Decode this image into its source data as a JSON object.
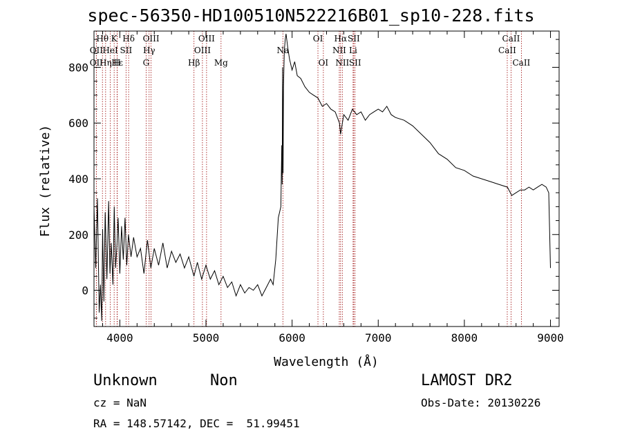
{
  "chart_data": {
    "type": "line",
    "title": "spec-56350-HD100510N522216B01_sp10-228.fits",
    "xlabel": "Wavelength (Å)",
    "ylabel": "Flux (relative)",
    "xlim": [
      3700,
      9100
    ],
    "ylim": [
      -130,
      930
    ],
    "xticks": [
      4000,
      5000,
      6000,
      7000,
      8000,
      9000
    ],
    "yticks": [
      0,
      200,
      400,
      600,
      800
    ],
    "grid": false,
    "line_color": "#000000",
    "marker_color": "#990000",
    "spectrum_points": [
      [
        3700,
        300
      ],
      [
        3720,
        80
      ],
      [
        3740,
        330
      ],
      [
        3760,
        -80
      ],
      [
        3775,
        20
      ],
      [
        3790,
        -110
      ],
      [
        3800,
        220
      ],
      [
        3815,
        -40
      ],
      [
        3830,
        280
      ],
      [
        3850,
        40
      ],
      [
        3870,
        320
      ],
      [
        3885,
        60
      ],
      [
        3900,
        170
      ],
      [
        3920,
        20
      ],
      [
        3935,
        300
      ],
      [
        3950,
        80
      ],
      [
        3965,
        150
      ],
      [
        3980,
        260
      ],
      [
        4000,
        60
      ],
      [
        4020,
        230
      ],
      [
        4040,
        110
      ],
      [
        4060,
        260
      ],
      [
        4080,
        90
      ],
      [
        4100,
        200
      ],
      [
        4130,
        120
      ],
      [
        4160,
        190
      ],
      [
        4200,
        120
      ],
      [
        4240,
        150
      ],
      [
        4280,
        60
      ],
      [
        4320,
        180
      ],
      [
        4360,
        80
      ],
      [
        4400,
        150
      ],
      [
        4450,
        90
      ],
      [
        4500,
        170
      ],
      [
        4550,
        80
      ],
      [
        4600,
        140
      ],
      [
        4650,
        100
      ],
      [
        4700,
        130
      ],
      [
        4750,
        80
      ],
      [
        4800,
        120
      ],
      [
        4860,
        50
      ],
      [
        4900,
        100
      ],
      [
        4950,
        40
      ],
      [
        5000,
        90
      ],
      [
        5050,
        40
      ],
      [
        5100,
        70
      ],
      [
        5150,
        20
      ],
      [
        5200,
        50
      ],
      [
        5250,
        10
      ],
      [
        5300,
        30
      ],
      [
        5350,
        -20
      ],
      [
        5400,
        20
      ],
      [
        5450,
        -10
      ],
      [
        5500,
        10
      ],
      [
        5550,
        0
      ],
      [
        5600,
        20
      ],
      [
        5650,
        -20
      ],
      [
        5700,
        10
      ],
      [
        5750,
        40
      ],
      [
        5780,
        20
      ],
      [
        5810,
        110
      ],
      [
        5840,
        260
      ],
      [
        5870,
        300
      ],
      [
        5880,
        520
      ],
      [
        5885,
        380
      ],
      [
        5890,
        800
      ],
      [
        5895,
        420
      ],
      [
        5900,
        730
      ],
      [
        5910,
        860
      ],
      [
        5920,
        900
      ],
      [
        5930,
        920
      ],
      [
        5950,
        870
      ],
      [
        5970,
        830
      ],
      [
        6000,
        790
      ],
      [
        6030,
        820
      ],
      [
        6060,
        770
      ],
      [
        6100,
        760
      ],
      [
        6150,
        730
      ],
      [
        6200,
        710
      ],
      [
        6250,
        700
      ],
      [
        6300,
        690
      ],
      [
        6350,
        660
      ],
      [
        6400,
        670
      ],
      [
        6450,
        650
      ],
      [
        6500,
        640
      ],
      [
        6550,
        600
      ],
      [
        6563,
        560
      ],
      [
        6600,
        630
      ],
      [
        6650,
        610
      ],
      [
        6700,
        650
      ],
      [
        6750,
        630
      ],
      [
        6800,
        640
      ],
      [
        6850,
        610
      ],
      [
        6900,
        630
      ],
      [
        6950,
        640
      ],
      [
        7000,
        650
      ],
      [
        7050,
        640
      ],
      [
        7100,
        660
      ],
      [
        7150,
        630
      ],
      [
        7200,
        620
      ],
      [
        7300,
        610
      ],
      [
        7400,
        590
      ],
      [
        7500,
        560
      ],
      [
        7600,
        530
      ],
      [
        7700,
        490
      ],
      [
        7800,
        470
      ],
      [
        7900,
        440
      ],
      [
        8000,
        430
      ],
      [
        8100,
        410
      ],
      [
        8200,
        400
      ],
      [
        8300,
        390
      ],
      [
        8400,
        380
      ],
      [
        8500,
        370
      ],
      [
        8550,
        340
      ],
      [
        8600,
        350
      ],
      [
        8650,
        360
      ],
      [
        8700,
        360
      ],
      [
        8750,
        370
      ],
      [
        8800,
        360
      ],
      [
        8850,
        370
      ],
      [
        8900,
        380
      ],
      [
        8950,
        370
      ],
      [
        8980,
        350
      ],
      [
        9000,
        80
      ]
    ],
    "lines": [
      {
        "label": "Hθ",
        "x": 3798,
        "row": 0
      },
      {
        "label": "K",
        "x": 3934,
        "row": 0
      },
      {
        "label": "Hδ",
        "x": 4102,
        "row": 0
      },
      {
        "label": "OIII",
        "x": 4363,
        "row": 0
      },
      {
        "label": "OIII",
        "x": 5007,
        "row": 0
      },
      {
        "label": "OI",
        "x": 6300,
        "row": 0
      },
      {
        "label": "Hα",
        "x": 6563,
        "row": 0
      },
      {
        "label": "SII",
        "x": 6716,
        "row": 0
      },
      {
        "label": "CaII",
        "x": 8542,
        "row": 0
      },
      {
        "label": "OII",
        "x": 3727,
        "row": 1
      },
      {
        "label": "HeI",
        "x": 3889,
        "row": 1
      },
      {
        "label": "SII",
        "x": 4072,
        "row": 1
      },
      {
        "label": "Hγ",
        "x": 4340,
        "row": 1
      },
      {
        "label": "OIII",
        "x": 4959,
        "row": 1
      },
      {
        "label": "Na",
        "x": 5893,
        "row": 1
      },
      {
        "label": "NII",
        "x": 6548,
        "row": 1
      },
      {
        "label": "Li",
        "x": 6708,
        "row": 1
      },
      {
        "label": "CaII",
        "x": 8498,
        "row": 1
      },
      {
        "label": "OII",
        "x": 3727,
        "row": 2
      },
      {
        "label": "Hε",
        "x": 3970,
        "row": 2
      },
      {
        "label": "Hη",
        "x": 3835,
        "row": 2
      },
      {
        "label": "H",
        "x": 3968,
        "row": 2
      },
      {
        "label": "G",
        "x": 4305,
        "row": 2
      },
      {
        "label": "Hβ",
        "x": 4861,
        "row": 2
      },
      {
        "label": "Mg",
        "x": 5175,
        "row": 2
      },
      {
        "label": "OI",
        "x": 6363,
        "row": 2
      },
      {
        "label": "NII",
        "x": 6583,
        "row": 2
      },
      {
        "label": "SII",
        "x": 6731,
        "row": 2
      },
      {
        "label": "CaII",
        "x": 8662,
        "row": 2
      }
    ]
  },
  "info": {
    "object_name": "Unknown",
    "object_class": "Non",
    "survey": "LAMOST DR2",
    "cz": "cz = NaN",
    "obs_date": "Obs-Date: 20130226",
    "coords": "RA = 148.57142, DEC =  51.99451"
  }
}
